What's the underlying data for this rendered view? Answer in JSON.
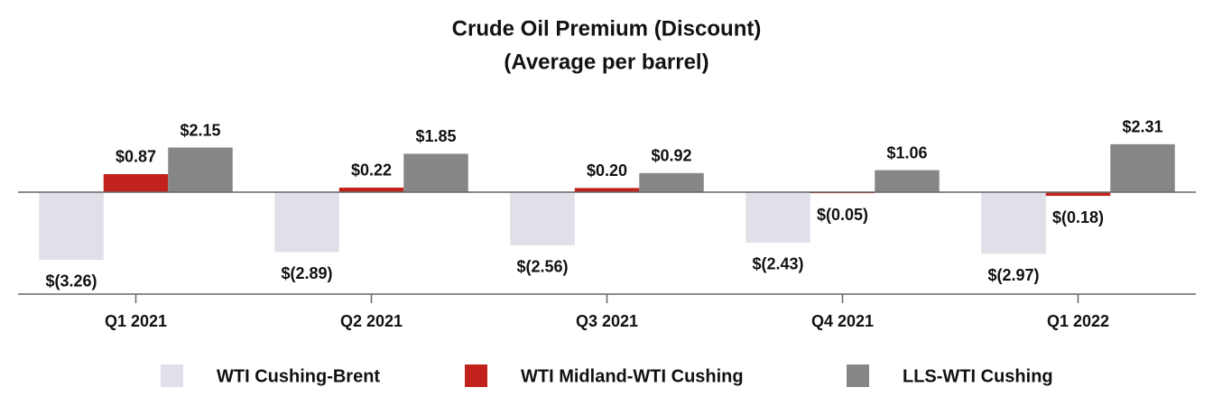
{
  "chart_data": {
    "type": "bar",
    "title": "Crude Oil Premium (Discount)",
    "subtitle": "(Average per barrel)",
    "categories": [
      "Q1 2021",
      "Q2 2021",
      "Q3 2021",
      "Q4 2021",
      "Q1 2022"
    ],
    "series": [
      {
        "name": "WTI Cushing-Brent",
        "color": "#e0e0e8",
        "values": [
          -3.26,
          -2.89,
          -2.56,
          -2.43,
          -2.97
        ],
        "value_labels": [
          "$(3.26)",
          "$(2.89)",
          "$(2.56)",
          "$(2.43)",
          "$(2.97)"
        ]
      },
      {
        "name": "WTI Midland-WTI Cushing",
        "color": "#c1231c",
        "values": [
          0.87,
          0.22,
          0.2,
          -0.05,
          -0.18
        ],
        "value_labels": [
          "$0.87",
          "$0.22",
          "$0.20",
          "$(0.05)",
          "$(0.18)"
        ]
      },
      {
        "name": "LLS-WTI Cushing",
        "color": "#868686",
        "values": [
          2.15,
          1.85,
          0.92,
          1.06,
          2.31
        ],
        "value_labels": [
          "$2.15",
          "$1.85",
          "$0.92",
          "$1.06",
          "$2.31"
        ]
      }
    ]
  }
}
